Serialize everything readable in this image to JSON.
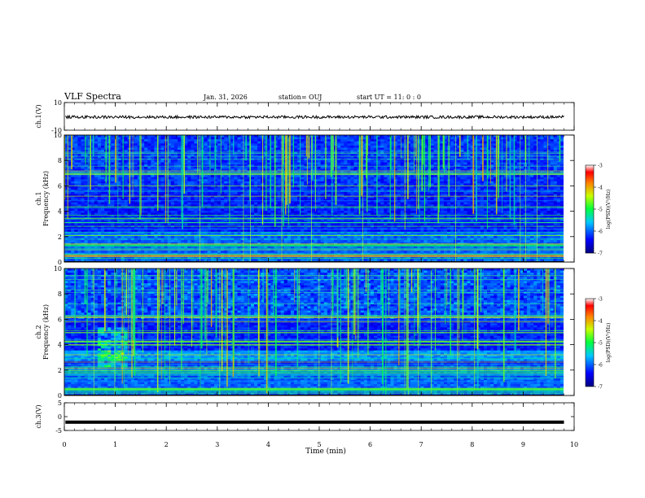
{
  "header": {
    "title": "VLF Spectra",
    "date": "Jan. 31, 2026",
    "station": "station= OUJ",
    "start": "start  UT =   11: 0  : 0"
  },
  "chart_data": [
    {
      "type": "line",
      "ylabel": "ch.1(V)",
      "ylim": [
        -10,
        10
      ],
      "yticks": [
        "10",
        "-10"
      ],
      "baseline": 0
    },
    {
      "type": "heatmap",
      "ylabel_top": "ch.1",
      "ylabel": "Frequency (kHz)",
      "xlim": [
        0,
        10
      ],
      "ylim": [
        0,
        10
      ],
      "yticks": [
        "0",
        "2",
        "4",
        "6",
        "8",
        "10"
      ],
      "colorbar": {
        "label": "log(PSD)(V²/Hz)",
        "range": [
          -7,
          -3
        ],
        "ticks": [
          "-3",
          "-4",
          "-5",
          "-6",
          "-7"
        ]
      }
    },
    {
      "type": "heatmap",
      "ylabel_top": "ch.2",
      "ylabel": "Frequency (kHz)",
      "xlim": [
        0,
        10
      ],
      "ylim": [
        0,
        10
      ],
      "yticks": [
        "0",
        "2",
        "4",
        "6",
        "8",
        "10"
      ],
      "colorbar": {
        "label": "log(PSD)(V²/Hz)",
        "range": [
          -7,
          -3
        ],
        "ticks": [
          "-3",
          "-4",
          "-5",
          "-6",
          "-7"
        ]
      }
    },
    {
      "type": "line",
      "ylabel": "ch.3(V)",
      "ylim": [
        -5,
        5
      ],
      "yticks": [
        "5",
        "0",
        "-5"
      ],
      "baseline": -2,
      "xlabel": "Time (min)",
      "xlim": [
        0,
        10
      ],
      "xticks": [
        "0",
        "1",
        "2",
        "3",
        "4",
        "5",
        "6",
        "7",
        "8",
        "9",
        "10"
      ]
    }
  ]
}
